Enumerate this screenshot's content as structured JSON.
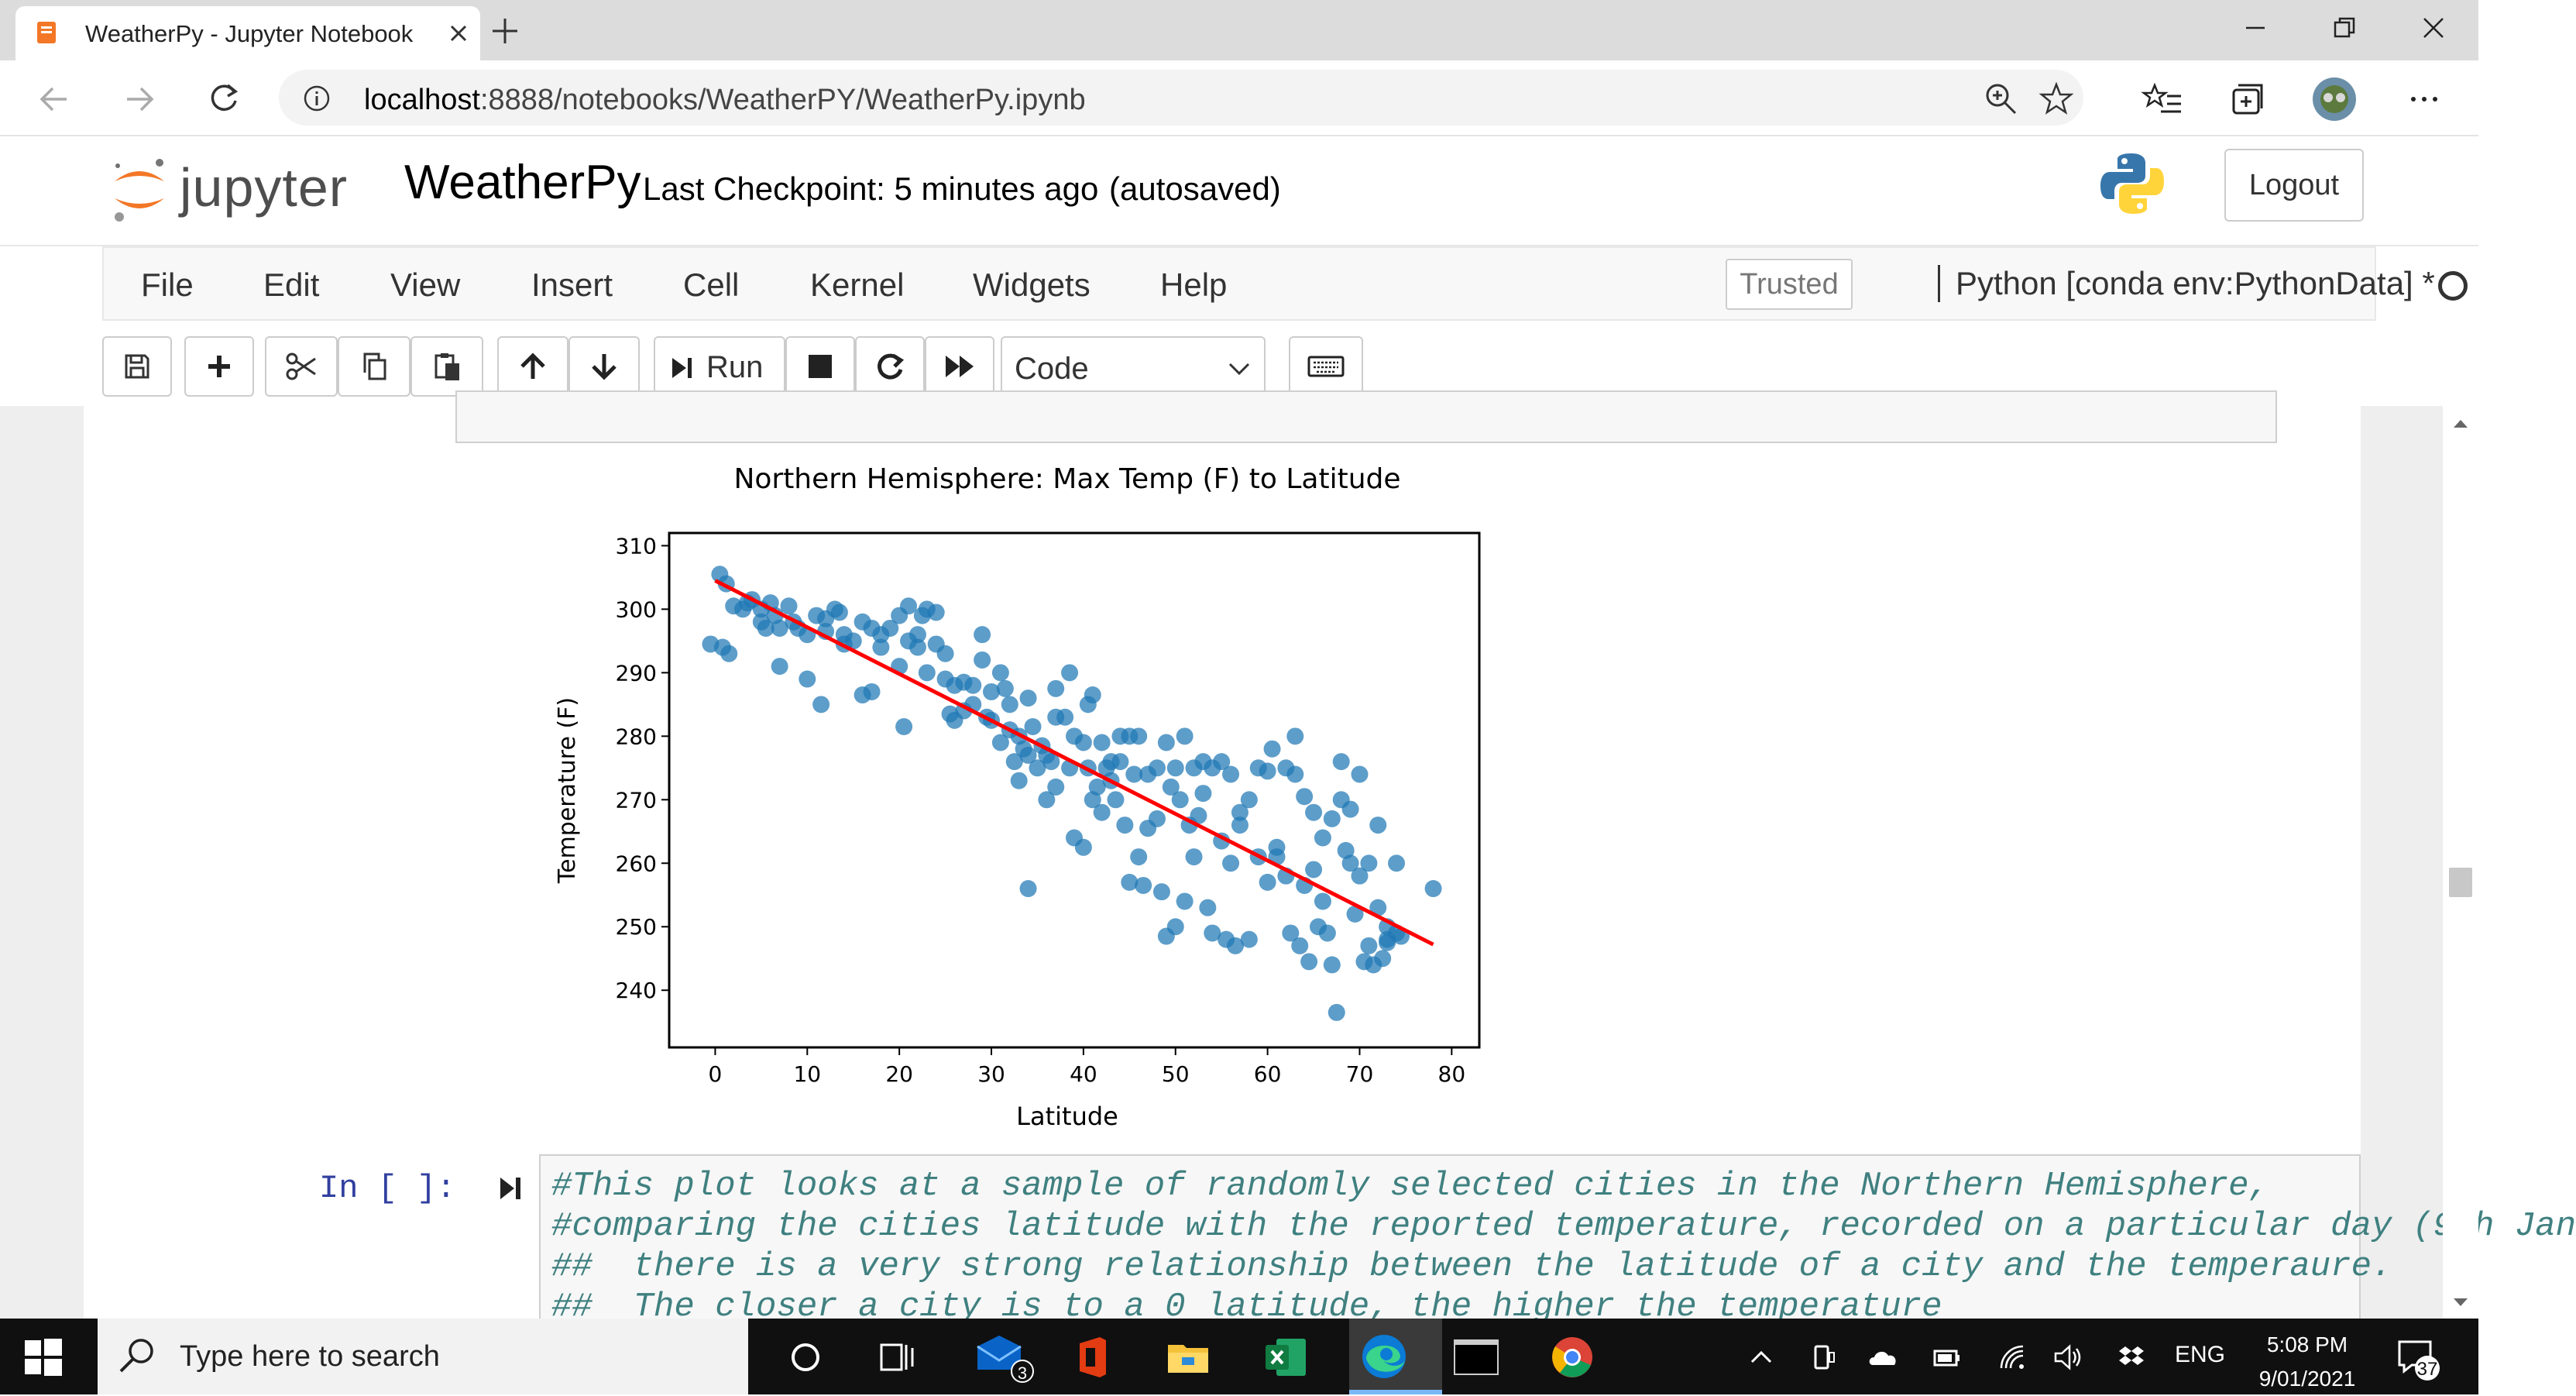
{
  "browser": {
    "tab_title": "WeatherPy - Jupyter Notebook",
    "url_host": "localhost",
    "url_path": ":8888/notebooks/WeatherPY/WeatherPy.ipynb"
  },
  "jupyter": {
    "logo_text": "jupyter",
    "notebook_name": "WeatherPy",
    "checkpoint": "Last Checkpoint: 5 minutes ago",
    "autosave": "(autosaved)",
    "logout_label": "Logout",
    "menu": [
      "File",
      "Edit",
      "View",
      "Insert",
      "Cell",
      "Kernel",
      "Widgets",
      "Help"
    ],
    "trusted_label": "Trusted",
    "kernel": "Python [conda env:PythonData] *",
    "run_label": "Run",
    "cell_type": "Code"
  },
  "chart_data": {
    "type": "scatter",
    "title": "Northern Hemisphere: Max Temp (F) to Latitude",
    "xlabel": "Latitude",
    "ylabel": "Temperature (F)",
    "xlim": [
      -5,
      83
    ],
    "ylim": [
      231,
      312
    ],
    "xticks": [
      0,
      10,
      20,
      30,
      40,
      50,
      60,
      70,
      80
    ],
    "yticks": [
      240,
      250,
      260,
      270,
      280,
      290,
      300,
      310
    ],
    "point_color": "#1f77b4",
    "regression_color": "#ff0000",
    "regression": {
      "x": [
        0,
        78
      ],
      "y": [
        304.5,
        247.2
      ]
    },
    "points": [
      [
        0.5,
        305.5
      ],
      [
        1.2,
        304
      ],
      [
        -0.5,
        294.5
      ],
      [
        0.8,
        294
      ],
      [
        1.5,
        293
      ],
      [
        2,
        300.5
      ],
      [
        3,
        300
      ],
      [
        3.5,
        301
      ],
      [
        4,
        301.5
      ],
      [
        5,
        300
      ],
      [
        5,
        298
      ],
      [
        5.5,
        297
      ],
      [
        6,
        301
      ],
      [
        6.5,
        299
      ],
      [
        7,
        297
      ],
      [
        7,
        291
      ],
      [
        8,
        300.5
      ],
      [
        8.5,
        298
      ],
      [
        9,
        297
      ],
      [
        10,
        296
      ],
      [
        10,
        289
      ],
      [
        11,
        299
      ],
      [
        11.5,
        285
      ],
      [
        12,
        296.5
      ],
      [
        12,
        298.5
      ],
      [
        13,
        300
      ],
      [
        13.5,
        299.5
      ],
      [
        14,
        296
      ],
      [
        14,
        294.5
      ],
      [
        15,
        295
      ],
      [
        16,
        298
      ],
      [
        16,
        286.5
      ],
      [
        17,
        297
      ],
      [
        17,
        287
      ],
      [
        18,
        296
      ],
      [
        18,
        294
      ],
      [
        19,
        297
      ],
      [
        20,
        291
      ],
      [
        20,
        299
      ],
      [
        20.5,
        281.5
      ],
      [
        21,
        300.5
      ],
      [
        21,
        295
      ],
      [
        22,
        294
      ],
      [
        22,
        296
      ],
      [
        22.5,
        299
      ],
      [
        23,
        300
      ],
      [
        23,
        290
      ],
      [
        24,
        299.5
      ],
      [
        24,
        294.5
      ],
      [
        25,
        293
      ],
      [
        25,
        289
      ],
      [
        25.5,
        283.5
      ],
      [
        26,
        288
      ],
      [
        26,
        282.5
      ],
      [
        27,
        288.5
      ],
      [
        27,
        284
      ],
      [
        28,
        288
      ],
      [
        28,
        285
      ],
      [
        29,
        292
      ],
      [
        29,
        296
      ],
      [
        29.5,
        283
      ],
      [
        30,
        287
      ],
      [
        30,
        282.5
      ],
      [
        31,
        279
      ],
      [
        31,
        290
      ],
      [
        31.5,
        287.5
      ],
      [
        32,
        285
      ],
      [
        32,
        281
      ],
      [
        32.5,
        276
      ],
      [
        33,
        280
      ],
      [
        33,
        273
      ],
      [
        33.5,
        278
      ],
      [
        34,
        277
      ],
      [
        34,
        286
      ],
      [
        34.5,
        281.5
      ],
      [
        34,
        256
      ],
      [
        35,
        275
      ],
      [
        35.5,
        278.5
      ],
      [
        36,
        277
      ],
      [
        36,
        270
      ],
      [
        36.5,
        276
      ],
      [
        37,
        283
      ],
      [
        37,
        287.5
      ],
      [
        37,
        272
      ],
      [
        38,
        283
      ],
      [
        38.5,
        290
      ],
      [
        38.5,
        275
      ],
      [
        39,
        280
      ],
      [
        39,
        264
      ],
      [
        40,
        279
      ],
      [
        40,
        262.5
      ],
      [
        40.5,
        275
      ],
      [
        40.5,
        285
      ],
      [
        41,
        286.5
      ],
      [
        41,
        270
      ],
      [
        41.5,
        272
      ],
      [
        42,
        279
      ],
      [
        42,
        268
      ],
      [
        42.5,
        275
      ],
      [
        43,
        276
      ],
      [
        43,
        273
      ],
      [
        43.5,
        270
      ],
      [
        44,
        280
      ],
      [
        44,
        276
      ],
      [
        44.5,
        266
      ],
      [
        45,
        280
      ],
      [
        45,
        257
      ],
      [
        45.5,
        274
      ],
      [
        46,
        280
      ],
      [
        46,
        261
      ],
      [
        46.5,
        256.5
      ],
      [
        47,
        274
      ],
      [
        47,
        265.5
      ],
      [
        48,
        275
      ],
      [
        48,
        267
      ],
      [
        48.5,
        255.5
      ],
      [
        49,
        279
      ],
      [
        49,
        248.5
      ],
      [
        49.5,
        272
      ],
      [
        50,
        275
      ],
      [
        50,
        250
      ],
      [
        50.5,
        270
      ],
      [
        51,
        280
      ],
      [
        51,
        254
      ],
      [
        51.5,
        266
      ],
      [
        52,
        275
      ],
      [
        52,
        261
      ],
      [
        52.5,
        267.5
      ],
      [
        53,
        276
      ],
      [
        53,
        271
      ],
      [
        53.5,
        253
      ],
      [
        54,
        275
      ],
      [
        54,
        249
      ],
      [
        55,
        276
      ],
      [
        55,
        263.5
      ],
      [
        55.5,
        248
      ],
      [
        56,
        274
      ],
      [
        56,
        260
      ],
      [
        56.5,
        247
      ],
      [
        57,
        266
      ],
      [
        57,
        268
      ],
      [
        58,
        270
      ],
      [
        58,
        248
      ],
      [
        59,
        275
      ],
      [
        59,
        261
      ],
      [
        60,
        274.5
      ],
      [
        60,
        257
      ],
      [
        60.5,
        278
      ],
      [
        61,
        261
      ],
      [
        61,
        262.5
      ],
      [
        62,
        275
      ],
      [
        62,
        258
      ],
      [
        62.5,
        249
      ],
      [
        63,
        280
      ],
      [
        63,
        274
      ],
      [
        63.5,
        247
      ],
      [
        64,
        270.5
      ],
      [
        64,
        256.5
      ],
      [
        64.5,
        244.5
      ],
      [
        65,
        268
      ],
      [
        65,
        259
      ],
      [
        65.5,
        250
      ],
      [
        66,
        264
      ],
      [
        66,
        254
      ],
      [
        66.5,
        249
      ],
      [
        67,
        267
      ],
      [
        67,
        244
      ],
      [
        67.5,
        236.5
      ],
      [
        68,
        270
      ],
      [
        68,
        276
      ],
      [
        68.5,
        262
      ],
      [
        69,
        268.5
      ],
      [
        69,
        260
      ],
      [
        69.5,
        252
      ],
      [
        70,
        274
      ],
      [
        70,
        258
      ],
      [
        70.5,
        244.5
      ],
      [
        71,
        260
      ],
      [
        71,
        247
      ],
      [
        71.5,
        244
      ],
      [
        72,
        266
      ],
      [
        72,
        253
      ],
      [
        72.5,
        245
      ],
      [
        73,
        250
      ],
      [
        73,
        247.5
      ],
      [
        74,
        260
      ],
      [
        74,
        249
      ],
      [
        74.5,
        248.5
      ],
      [
        78,
        256
      ],
      [
        73,
        248
      ]
    ]
  },
  "code_cell": {
    "prompt": "In [ ]:",
    "lines": [
      "#This plot looks at a sample of randomly selected cities in the Northern Hemisphere,",
      "#comparing the cities latitude with the reported temperature, recorded on a particular day (9th Jan",
      "##  there is a very strong relationship between the latitude of a city and the temperaure.",
      "##  The closer a city is to a 0 latitude, the higher the temperature"
    ]
  },
  "taskbar": {
    "search_placeholder": "Type here to search",
    "mail_badge": "3",
    "language": "ENG",
    "time": "5:08 PM",
    "date": "9/01/2021",
    "notification_count": "37"
  }
}
